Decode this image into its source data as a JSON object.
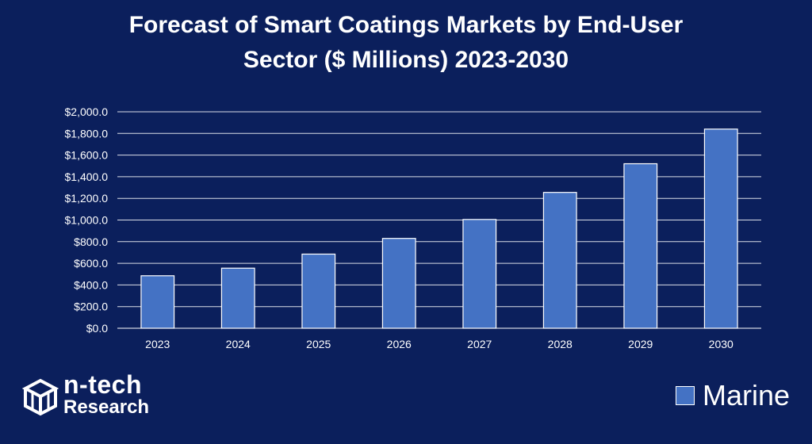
{
  "chart_data": {
    "type": "bar",
    "title_lines": [
      "Forecast of Smart Coatings Markets by End-User",
      "Sector ($ Millions) 2023-2030"
    ],
    "categories": [
      "2023",
      "2024",
      "2025",
      "2026",
      "2027",
      "2028",
      "2029",
      "2030"
    ],
    "series": [
      {
        "name": "Marine",
        "values": [
          485,
          555,
          685,
          830,
          1005,
          1255,
          1520,
          1840
        ]
      }
    ],
    "ylim": [
      0,
      2000
    ],
    "yticks": [
      0,
      200,
      400,
      600,
      800,
      1000,
      1200,
      1400,
      1600,
      1800,
      2000
    ],
    "ytick_labels": [
      "$0.0",
      "$200.0",
      "$400.0",
      "$600.0",
      "$800.0",
      "$1,000.0",
      "$1,200.0",
      "$1,400.0",
      "$1,600.0",
      "$1,800.0",
      "$2,000.0"
    ],
    "grid": true,
    "legend_position": "bottom-right",
    "colors": {
      "bar": "#4472c4",
      "background": "#0b1f5c",
      "grid": "#ffffff",
      "text": "#ffffff"
    }
  },
  "logo": {
    "line1": "n-tech",
    "line2": "Research"
  }
}
